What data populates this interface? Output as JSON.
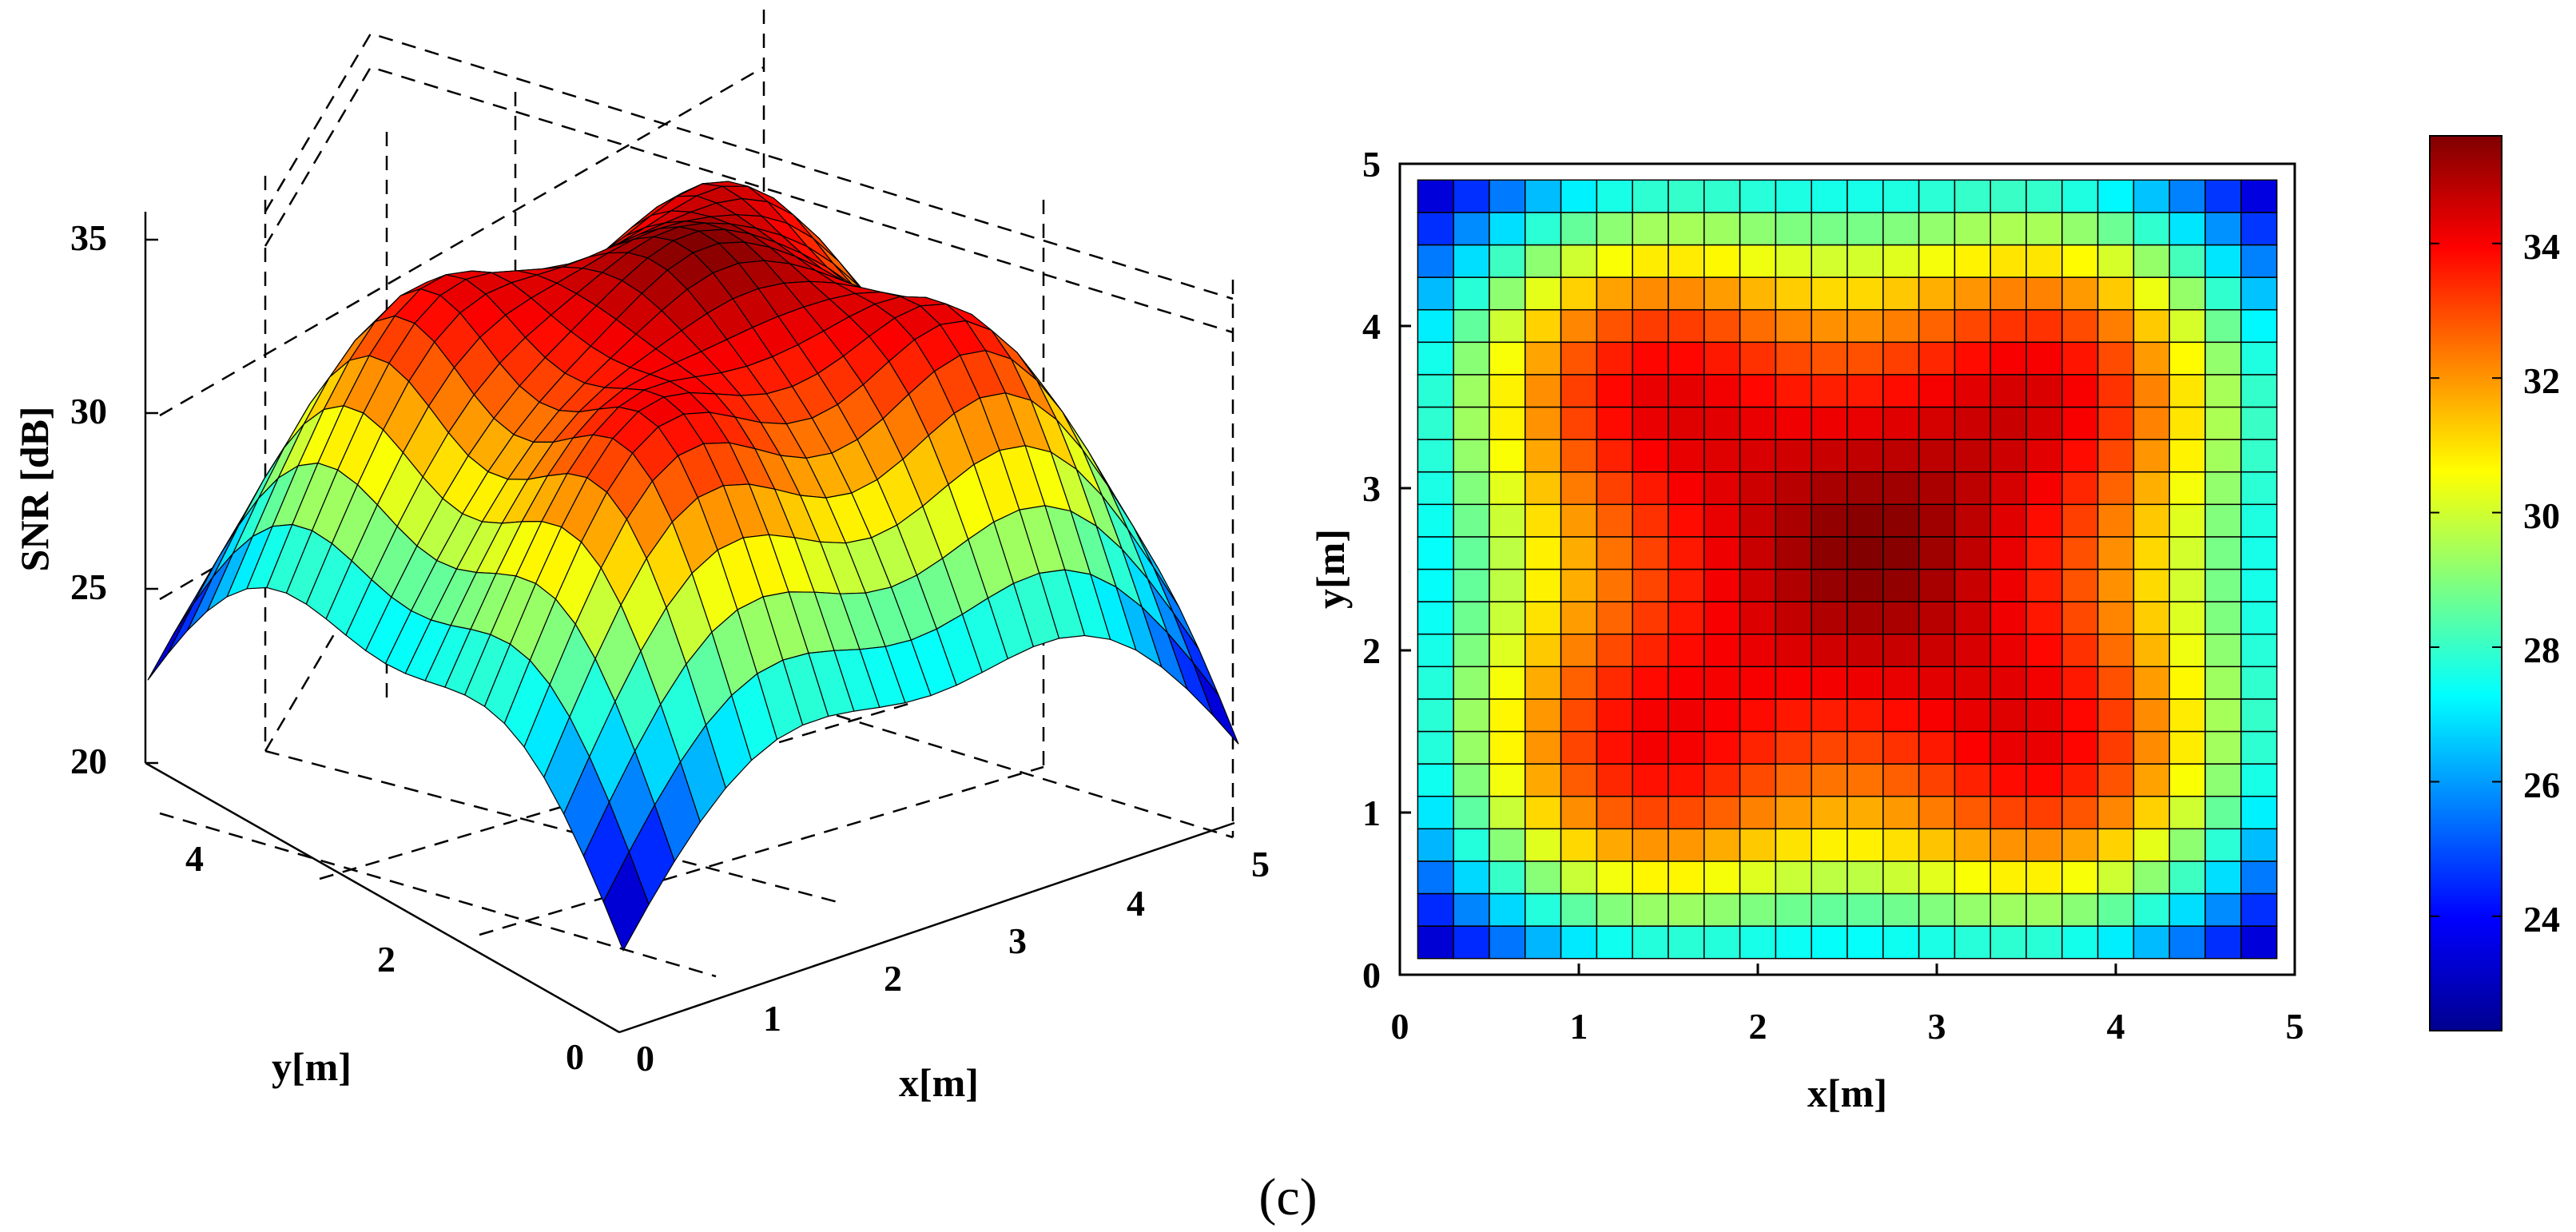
{
  "figure": {
    "caption": "(c)"
  },
  "chart_data": [
    {
      "type": "surface3d",
      "zlabel": "SNR [dB]",
      "xlabel": "x[m]",
      "ylabel": "y[m]",
      "xlim": [
        0,
        5
      ],
      "ylim": [
        0,
        5
      ],
      "zlim": [
        20,
        36
      ],
      "xticks": [
        "0",
        "1",
        "2",
        "3",
        "4",
        "5"
      ],
      "yticks": [
        "0",
        "2",
        "4"
      ],
      "zticks": [
        "20",
        "25",
        "30",
        "35"
      ],
      "grid": true,
      "grid_size": [
        24,
        24
      ],
      "surface_min": 22.3,
      "surface_max": 35.6,
      "colormap": "jet"
    },
    {
      "type": "heatmap",
      "xlabel": "x[m]",
      "ylabel": "y[m]",
      "xlim": [
        0,
        5
      ],
      "ylim": [
        0,
        5
      ],
      "xticks": [
        "0",
        "1",
        "2",
        "3",
        "4",
        "5"
      ],
      "yticks": [
        "0",
        "1",
        "2",
        "3",
        "4",
        "5"
      ],
      "grid_size": [
        24,
        24
      ],
      "colorbar": {
        "ticks": [
          "24",
          "26",
          "28",
          "30",
          "32",
          "34"
        ],
        "min": 22.3,
        "max": 35.6,
        "colormap": "jet"
      }
    }
  ],
  "colors": {
    "background": "#ffffff",
    "grid_line": "#000000",
    "axis": "#000000"
  }
}
